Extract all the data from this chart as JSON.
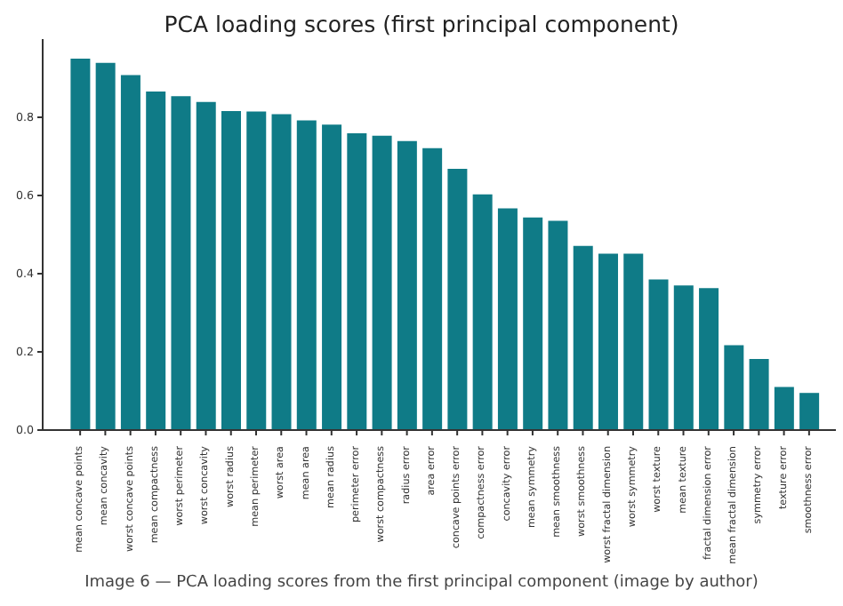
{
  "chart_data": {
    "type": "bar",
    "title": "PCA loading scores (first principal component)",
    "categories": [
      "mean concave points",
      "mean concavity",
      "worst concave points",
      "mean compactness",
      "worst perimeter",
      "worst concavity",
      "worst radius",
      "mean perimeter",
      "worst area",
      "mean area",
      "mean radius",
      "perimeter error",
      "worst compactness",
      "radius error",
      "area error",
      "concave points error",
      "compactness error",
      "concavity error",
      "mean symmetry",
      "mean smoothness",
      "worst smoothness",
      "worst fractal dimension",
      "worst symmetry",
      "worst texture",
      "mean texture",
      "fractal dimension error",
      "mean fractal dimension",
      "symmetry error",
      "texture error",
      "smoothness error"
    ],
    "values": [
      0.95,
      0.939,
      0.908,
      0.866,
      0.854,
      0.839,
      0.816,
      0.815,
      0.808,
      0.792,
      0.781,
      0.759,
      0.753,
      0.739,
      0.721,
      0.668,
      0.603,
      0.567,
      0.544,
      0.535,
      0.471,
      0.451,
      0.451,
      0.385,
      0.37,
      0.363,
      0.217,
      0.182,
      0.11,
      0.095
    ],
    "color": "#0f7b87",
    "ylim": [
      0,
      1.0
    ],
    "yticks": [
      {
        "value": 0,
        "label": "0.0"
      },
      {
        "value": 0.2,
        "label": "0.2"
      },
      {
        "value": 0.4,
        "label": "0.4"
      },
      {
        "value": 0.6,
        "label": "0.6"
      },
      {
        "value": 0.8,
        "label": "0.8"
      }
    ],
    "grid": false,
    "legend": false,
    "annotations": [
      "Image 6 — PCA loading scores from the first principal component (image by author)"
    ]
  }
}
